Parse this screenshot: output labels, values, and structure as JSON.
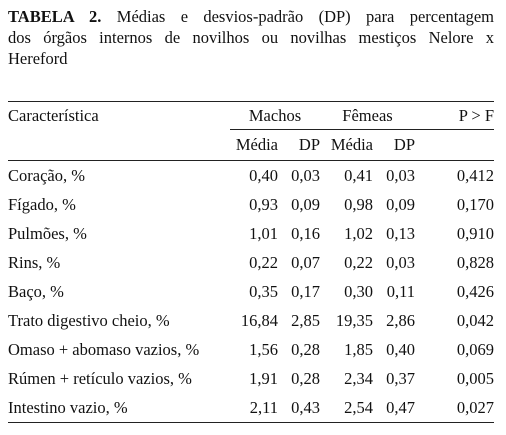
{
  "caption": {
    "label": "TABELA 2.",
    "line1": "Médias e desvios-padrão (DP) para percentagem",
    "line2": "dos órgãos internos de novilhos ou novilhas mestiços Nelore x",
    "line3": "Hereford"
  },
  "table": {
    "header": {
      "characteristic": "Característica",
      "males": "Machos",
      "females": "Fêmeas",
      "p": "P > F"
    },
    "subheader": {
      "male_mean": "Média",
      "male_sd": "DP",
      "female_mean": "Média",
      "female_sd": "DP"
    },
    "rows": [
      {
        "characteristic": "Coração, %",
        "male_mean": "0,40",
        "male_sd": "0,03",
        "female_mean": "0,41",
        "female_sd": "0,03",
        "p": "0,412"
      },
      {
        "characteristic": "Fígado, %",
        "male_mean": "0,93",
        "male_sd": "0,09",
        "female_mean": "0,98",
        "female_sd": "0,09",
        "p": "0,170"
      },
      {
        "characteristic": "Pulmões, %",
        "male_mean": "1,01",
        "male_sd": "0,16",
        "female_mean": "1,02",
        "female_sd": "0,13",
        "p": "0,910"
      },
      {
        "characteristic": "Rins, %",
        "male_mean": "0,22",
        "male_sd": "0,07",
        "female_mean": "0,22",
        "female_sd": "0,03",
        "p": "0,828"
      },
      {
        "characteristic": "Baço, %",
        "male_mean": "0,35",
        "male_sd": "0,17",
        "female_mean": "0,30",
        "female_sd": "0,11",
        "p": "0,426"
      },
      {
        "characteristic": "Trato digestivo cheio, %",
        "male_mean": "16,84",
        "male_sd": "2,85",
        "female_mean": "19,35",
        "female_sd": "2,86",
        "p": "0,042"
      },
      {
        "characteristic": "Omaso + abomaso vazios, %",
        "male_mean": "1,56",
        "male_sd": "0,28",
        "female_mean": "1,85",
        "female_sd": "0,40",
        "p": "0,069"
      },
      {
        "characteristic": "Rúmen + retículo vazios, %",
        "male_mean": "1,91",
        "male_sd": "0,28",
        "female_mean": "2,34",
        "female_sd": "0,37",
        "p": "0,005"
      },
      {
        "characteristic": "Intestino vazio, %",
        "male_mean": "2,11",
        "male_sd": "0,43",
        "female_mean": "2,54",
        "female_sd": "0,47",
        "p": "0,027"
      }
    ]
  }
}
